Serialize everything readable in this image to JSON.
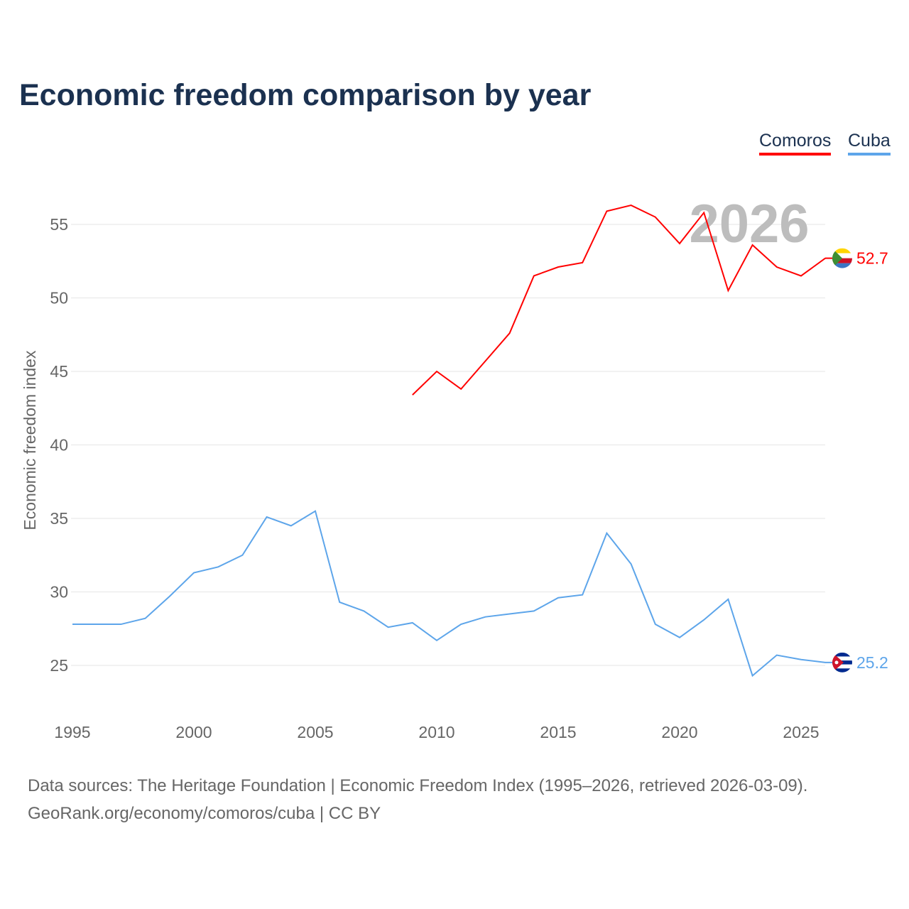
{
  "title": "Economic freedom comparison by year",
  "legend": [
    {
      "label": "Comoros",
      "color": "#ff0000"
    },
    {
      "label": "Cuba",
      "color": "#5da5ea"
    }
  ],
  "year_label": "2026",
  "footer": {
    "line1": "Data sources: The Heritage Foundation | Economic Freedom Index (1995–2026, retrieved 2026-03-09).",
    "line2": "GeoRank.org/economy/comoros/cuba | CC BY"
  },
  "chart_data": {
    "type": "line",
    "title": "Economic freedom comparison by year",
    "xlabel": "",
    "ylabel": "Economic freedom index",
    "xlim": [
      1995,
      2026
    ],
    "ylim": [
      22,
      57.5
    ],
    "xticks": [
      1995,
      2000,
      2005,
      2010,
      2015,
      2020,
      2025
    ],
    "yticks": [
      25,
      30,
      35,
      40,
      45,
      50,
      55
    ],
    "grid": true,
    "legend_position": "top-right",
    "series": [
      {
        "name": "Comoros",
        "color": "#ff0000",
        "end_label": "52.7",
        "x": [
          2009,
          2010,
          2011,
          2012,
          2013,
          2014,
          2015,
          2016,
          2017,
          2018,
          2019,
          2020,
          2021,
          2022,
          2023,
          2024,
          2025,
          2026
        ],
        "values": [
          43.4,
          45.0,
          43.8,
          45.7,
          47.6,
          51.5,
          52.1,
          52.4,
          55.9,
          56.3,
          55.5,
          53.7,
          55.8,
          50.5,
          53.6,
          52.1,
          51.5,
          52.7
        ]
      },
      {
        "name": "Cuba",
        "color": "#5da5ea",
        "end_label": "25.2",
        "x": [
          1995,
          1996,
          1997,
          1998,
          1999,
          2000,
          2001,
          2002,
          2003,
          2004,
          2005,
          2006,
          2007,
          2008,
          2009,
          2010,
          2011,
          2012,
          2013,
          2014,
          2015,
          2016,
          2017,
          2018,
          2019,
          2020,
          2021,
          2022,
          2023,
          2024,
          2025,
          2026
        ],
        "values": [
          27.8,
          27.8,
          27.8,
          28.2,
          29.7,
          31.3,
          31.7,
          32.5,
          35.1,
          34.5,
          35.5,
          29.3,
          28.7,
          27.6,
          27.9,
          26.7,
          27.8,
          28.3,
          28.5,
          28.7,
          29.6,
          29.8,
          34.0,
          31.9,
          27.8,
          26.9,
          28.1,
          29.5,
          24.3,
          25.7,
          25.4,
          25.2
        ]
      }
    ]
  }
}
